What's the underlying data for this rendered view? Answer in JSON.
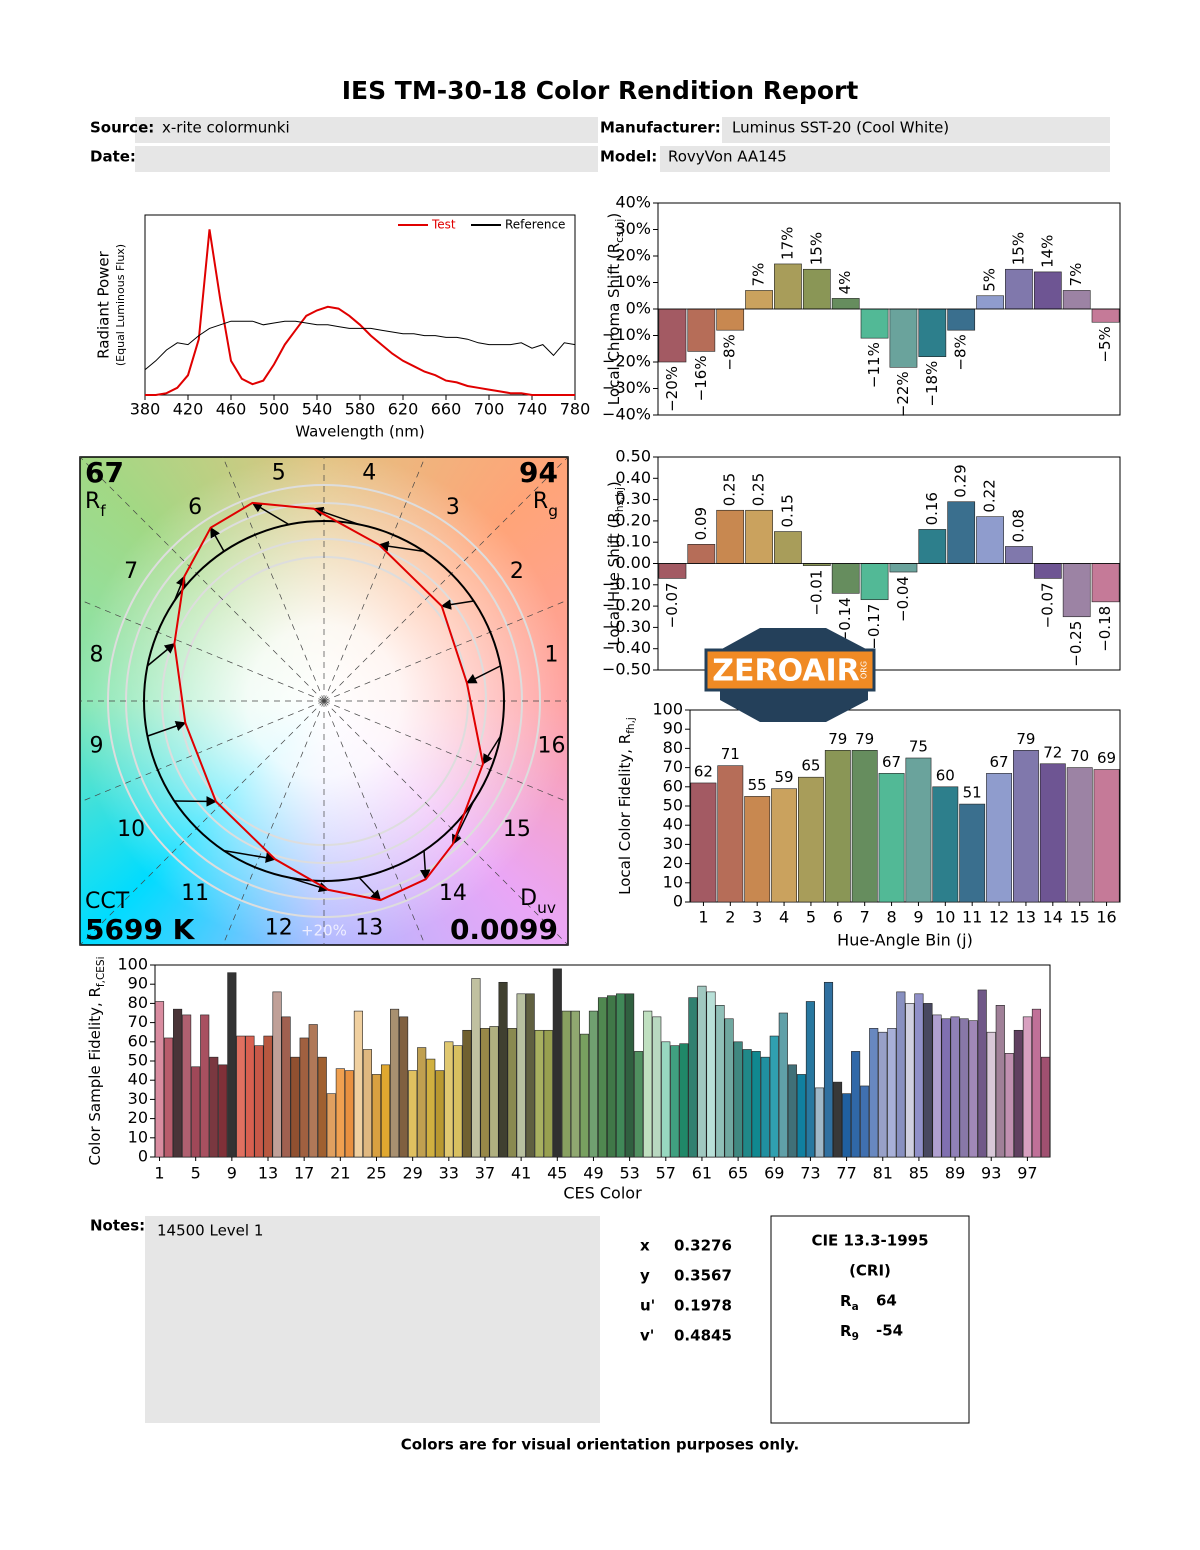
{
  "header": {
    "title": "IES TM-30-18 Color Rendition Report",
    "fields": [
      {
        "label": "Source:",
        "value": "x-rite colormunki"
      },
      {
        "label": "Manufacturer:",
        "value": "Luminus SST-20 (Cool White)"
      },
      {
        "label": "Date:"
      },
      {
        "label": "Model:",
        "value": "RovyVon AA145"
      }
    ]
  },
  "chart_data": [
    {
      "type": "line",
      "y_label": [
        "Radiant Power",
        "(Equal Luminous Flux)"
      ],
      "x_label": "Wavelength (nm)",
      "x": [
        380,
        390,
        400,
        410,
        420,
        430,
        440,
        450,
        460,
        470,
        480,
        490,
        500,
        510,
        520,
        530,
        540,
        550,
        560,
        570,
        580,
        590,
        600,
        610,
        620,
        630,
        640,
        650,
        660,
        670,
        680,
        690,
        700,
        710,
        720,
        730,
        740,
        750,
        760,
        770,
        780
      ],
      "xlim": [
        380,
        780
      ],
      "xticks": [
        380,
        420,
        460,
        500,
        540,
        580,
        620,
        660,
        700,
        740,
        780
      ],
      "ylim": [
        0,
        1
      ],
      "series": [
        {
          "name": "Test",
          "color": "#e00000",
          "values": [
            0,
            0,
            0.01,
            0.04,
            0.11,
            0.31,
            0.92,
            0.53,
            0.19,
            0.09,
            0.06,
            0.08,
            0.17,
            0.28,
            0.36,
            0.44,
            0.47,
            0.49,
            0.48,
            0.44,
            0.39,
            0.33,
            0.28,
            0.23,
            0.19,
            0.16,
            0.13,
            0.11,
            0.08,
            0.07,
            0.05,
            0.04,
            0.03,
            0.02,
            0.01,
            0.01,
            0,
            0,
            0,
            0,
            0
          ]
        },
        {
          "name": "Reference",
          "color": "#000000",
          "values": [
            0.14,
            0.19,
            0.25,
            0.29,
            0.28,
            0.33,
            0.37,
            0.39,
            0.41,
            0.41,
            0.41,
            0.39,
            0.4,
            0.41,
            0.41,
            0.4,
            0.39,
            0.39,
            0.38,
            0.37,
            0.37,
            0.37,
            0.36,
            0.35,
            0.34,
            0.34,
            0.33,
            0.33,
            0.32,
            0.32,
            0.31,
            0.29,
            0.28,
            0.28,
            0.28,
            0.29,
            0.26,
            0.28,
            0.22,
            0.29,
            0.28
          ]
        }
      ]
    },
    {
      "type": "vector_graphic",
      "rf": 67,
      "rf_label": [
        "R",
        "f"
      ],
      "rg": 94,
      "rg_label": [
        "R",
        "g"
      ],
      "cct_label": "CCT",
      "cct": "5699 K",
      "duv_label": [
        "D",
        "uv"
      ],
      "duv": 0.0099,
      "scale_label": "+20%",
      "bin_labels": [
        "1",
        "2",
        "3",
        "4",
        "5",
        "6",
        "7",
        "8",
        "9",
        "10",
        "11",
        "12",
        "13",
        "14",
        "15",
        "16"
      ]
    },
    {
      "type": "bar",
      "y_label": [
        "Local Chroma Shift (R",
        "cs,hj",
        ")"
      ],
      "ylim": [
        -40,
        40
      ],
      "yticks": [
        {
          "value": -40,
          "label": "−40%"
        },
        {
          "value": -30,
          "label": "−30%"
        },
        {
          "value": -20,
          "label": "−20%"
        },
        {
          "value": -10,
          "label": "−10%"
        },
        {
          "value": 0,
          "label": "0%"
        },
        {
          "value": 10,
          "label": "10%"
        },
        {
          "value": 20,
          "label": "20%"
        },
        {
          "value": 30,
          "label": "30%"
        },
        {
          "value": 40,
          "label": "40%"
        }
      ],
      "values": [
        -20,
        -16,
        -8,
        7,
        17,
        15,
        4,
        -11,
        -22,
        -18,
        -8,
        5,
        15,
        14,
        7,
        -5
      ],
      "value_labels": [
        "−20%",
        "−16%",
        "−8%",
        "7%",
        "17%",
        "15%",
        "4%",
        "−11%",
        "−22%",
        "−18%",
        "−8%",
        "5%",
        "15%",
        "14%",
        "7%",
        "−5%"
      ],
      "colors": [
        "#a35a63",
        "#b66d58",
        "#c88850",
        "#caa25e",
        "#a89d5a",
        "#8a9656",
        "#668d5e",
        "#52b996",
        "#6aa39c",
        "#2d7f8c",
        "#3a6f8e",
        "#8f9ccd",
        "#8078ac",
        "#6e5593",
        "#9c83a4",
        "#c57a98"
      ]
    },
    {
      "type": "bar",
      "y_label": [
        "Local Hue Shift (R",
        "hs,hj",
        ")"
      ],
      "ylim": [
        -0.5,
        0.5
      ],
      "yticks": [
        {
          "value": -0.5,
          "label": "−0.50"
        },
        {
          "value": -0.4,
          "label": "−0.40"
        },
        {
          "value": -0.3,
          "label": "−0.30"
        },
        {
          "value": -0.2,
          "label": "−0.20"
        },
        {
          "value": -0.1,
          "label": "−0.10"
        },
        {
          "value": 0,
          "label": "0.00"
        },
        {
          "value": 0.1,
          "label": "0.10"
        },
        {
          "value": 0.2,
          "label": "0.20"
        },
        {
          "value": 0.3,
          "label": "0.30"
        },
        {
          "value": 0.4,
          "label": "0.40"
        },
        {
          "value": 0.5,
          "label": "0.50"
        }
      ],
      "values": [
        -0.07,
        0.09,
        0.25,
        0.25,
        0.15,
        -0.01,
        -0.14,
        -0.17,
        -0.04,
        0.16,
        0.29,
        0.22,
        0.08,
        -0.07,
        -0.25,
        -0.18
      ],
      "value_labels": [
        "−0.07",
        "0.09",
        "0.25",
        "0.25",
        "0.15",
        "−0.01",
        "−0.14",
        "−0.17",
        "−0.04",
        "0.16",
        "0.29",
        "0.22",
        "0.08",
        "−0.07",
        "−0.25",
        "−0.18"
      ],
      "colors": [
        "#a35a63",
        "#b66d58",
        "#c88850",
        "#caa25e",
        "#a89d5a",
        "#8a9656",
        "#668d5e",
        "#52b996",
        "#6aa39c",
        "#2d7f8c",
        "#3a6f8e",
        "#8f9ccd",
        "#8078ac",
        "#6e5593",
        "#9c83a4",
        "#c57a98"
      ]
    },
    {
      "type": "bar",
      "y_label": [
        "Local Color Fidelity, R",
        "fh,j"
      ],
      "x_label": "Hue-Angle Bin (j)",
      "ylim": [
        0,
        100
      ],
      "yticks": [
        0,
        10,
        20,
        30,
        40,
        50,
        60,
        70,
        80,
        90,
        100
      ],
      "categories": [
        "1",
        "2",
        "3",
        "4",
        "5",
        "6",
        "7",
        "8",
        "9",
        "10",
        "11",
        "12",
        "13",
        "14",
        "15",
        "16"
      ],
      "values": [
        62,
        71,
        55,
        59,
        65,
        79,
        79,
        67,
        75,
        60,
        51,
        67,
        79,
        72,
        70,
        69
      ],
      "colors": [
        "#a35a63",
        "#b66d58",
        "#c88850",
        "#caa25e",
        "#a89d5a",
        "#8a9656",
        "#668d5e",
        "#52b996",
        "#6aa39c",
        "#2d7f8c",
        "#3a6f8e",
        "#8f9ccd",
        "#8078ac",
        "#6e5593",
        "#9c83a4",
        "#c57a98"
      ]
    },
    {
      "type": "bar",
      "y_label": [
        "Color Sample Fidelity, R",
        "f,CESi"
      ],
      "x_label": "CES Color",
      "ylim": [
        0,
        100
      ],
      "yticks": [
        0,
        10,
        20,
        30,
        40,
        50,
        60,
        70,
        80,
        90,
        100
      ],
      "categories": [
        "1",
        null,
        null,
        null,
        "5",
        null,
        null,
        null,
        "9",
        null,
        null,
        null,
        "13",
        null,
        null,
        null,
        "17",
        null,
        null,
        null,
        "21",
        null,
        null,
        null,
        "25",
        null,
        null,
        null,
        "29",
        null,
        null,
        null,
        "33",
        null,
        null,
        null,
        "37",
        null,
        null,
        null,
        "41",
        null,
        null,
        null,
        "45",
        null,
        null,
        null,
        "49",
        null,
        null,
        null,
        "53",
        null,
        null,
        null,
        "57",
        null,
        null,
        null,
        "61",
        null,
        null,
        null,
        "65",
        null,
        null,
        null,
        "69",
        null,
        null,
        null,
        "73",
        null,
        null,
        null,
        "77",
        null,
        null,
        null,
        "81",
        null,
        null,
        null,
        "85",
        null,
        null,
        null,
        "89",
        null,
        null,
        null,
        "93",
        null,
        null,
        null,
        "97",
        null,
        null
      ],
      "values": [
        81,
        62,
        77,
        74,
        47,
        74,
        52,
        48,
        96,
        63,
        63,
        58,
        63,
        86,
        73,
        52,
        62,
        69,
        52,
        33,
        46,
        45,
        76,
        56,
        43,
        48,
        77,
        73,
        45,
        57,
        51,
        45,
        60,
        58,
        66,
        93,
        67,
        68,
        91,
        67,
        85,
        85,
        66,
        66,
        98,
        76,
        76,
        64,
        76,
        83,
        84,
        85,
        85,
        55,
        76,
        73,
        60,
        58,
        59,
        83,
        89,
        86,
        79,
        72,
        60,
        56,
        55,
        52,
        63,
        75,
        48,
        43,
        81,
        36,
        91,
        39,
        33,
        55,
        37,
        67,
        65,
        67,
        86,
        80,
        85,
        80,
        74,
        72,
        73,
        72,
        71,
        87,
        65,
        79,
        54,
        66,
        73,
        77,
        52
      ],
      "colors": [
        "#d98ca0",
        "#b85c6c",
        "#4a3438",
        "#b06070",
        "#a04858",
        "#a85060",
        "#7a3840",
        "#803038",
        "#333333",
        "#e07060",
        "#d86050",
        "#c85848",
        "#b85840",
        "#c0a098",
        "#a06050",
        "#905030",
        "#a06040",
        "#b07858",
        "#a06030",
        "#e0a060",
        "#f0a050",
        "#e89040",
        "#f0d0a0",
        "#e0b880",
        "#d8a040",
        "#e0a830",
        "#a89070",
        "#806040",
        "#e0c060",
        "#c0a050",
        "#d0b040",
        "#b89830",
        "#e0c870",
        "#d8c060",
        "#706030",
        "#c0c0a0",
        "#988848",
        "#b0b080",
        "#404030",
        "#8a8a50",
        "#b8c0a0",
        "#606040",
        "#a8b060",
        "#98a050",
        "#303030",
        "#88a060",
        "#90a870",
        "#78a060",
        "#70a070",
        "#508850",
        "#407848",
        "#408858",
        "#306040",
        "#509060",
        "#c0e0c0",
        "#b8d8c0",
        "#98d8c0",
        "#40a080",
        "#208868",
        "#308070",
        "#a0c8c0",
        "#b8e0d8",
        "#90c0b8",
        "#70a8a0",
        "#408880",
        "#208888",
        "#108890",
        "#2090a0",
        "#30a0b0",
        "#60a0a8",
        "#407078",
        "#1080a0",
        "#2878a0",
        "#a0b8c8",
        "#3070a0",
        "#383838",
        "#2060a0",
        "#3068a8",
        "#4070b0",
        "#6888c0",
        "#98a0c8",
        "#a8b0d8",
        "#8890c0",
        "#d0d0e0",
        "#9090c8",
        "#484860",
        "#b0a0d0",
        "#8070b0",
        "#9080b8",
        "#8878a8",
        "#a088b8",
        "#705888",
        "#d8c8d8",
        "#a08098",
        "#c090b0",
        "#604060",
        "#d8a0c0",
        "#c07098",
        "#a05070"
      ]
    }
  ],
  "notes": {
    "label": "Notes:",
    "text": "14500 Level 1"
  },
  "chromaticity": [
    {
      "label": "x",
      "value": 0.3276
    },
    {
      "label": "y",
      "value": 0.3567
    },
    {
      "label": "u'",
      "value": 0.1978
    },
    {
      "label": "v'",
      "value": 0.4845
    }
  ],
  "cri": {
    "title": "CIE 13.3-1995",
    "subtitle": "(CRI)",
    "ra": {
      "label": [
        "R",
        "a"
      ],
      "value": 64
    },
    "r9": {
      "label": [
        "R",
        "9"
      ],
      "value": -54
    }
  },
  "watermark": {
    "text": "ZEROAIR",
    "suffix": "ORG"
  },
  "footer": "Colors are for visual orientation purposes only."
}
